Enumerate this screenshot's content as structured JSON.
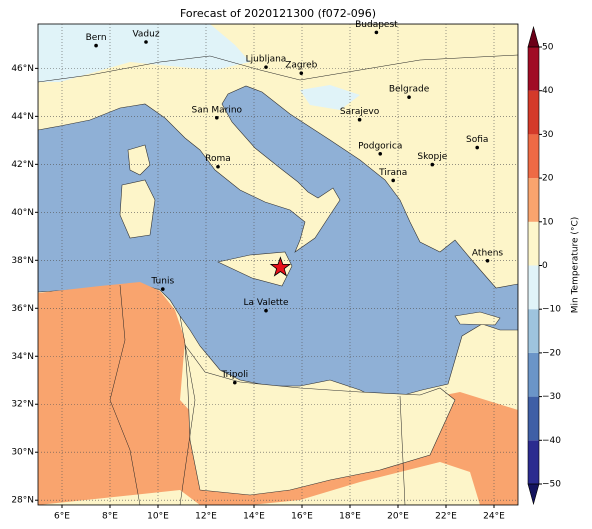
{
  "title": "Forecast of 2020121300 (f072-096)",
  "map": {
    "xlim": [
      5,
      25
    ],
    "ylim": [
      27.8,
      47.85
    ],
    "xticks": [
      {
        "value": 6,
        "label": "6°E"
      },
      {
        "value": 8,
        "label": "8°E"
      },
      {
        "value": 10,
        "label": "10°E"
      },
      {
        "value": 12,
        "label": "12°E"
      },
      {
        "value": 14,
        "label": "14°E"
      },
      {
        "value": 16,
        "label": "16°E"
      },
      {
        "value": 18,
        "label": "18°E"
      },
      {
        "value": 20,
        "label": "20°E"
      },
      {
        "value": 22,
        "label": "22°E"
      },
      {
        "value": 24,
        "label": "24°E"
      }
    ],
    "yticks": [
      {
        "value": 28,
        "label": "28°N"
      },
      {
        "value": 30,
        "label": "30°N"
      },
      {
        "value": 32,
        "label": "32°N"
      },
      {
        "value": 34,
        "label": "34°N"
      },
      {
        "value": 36,
        "label": "36°N"
      },
      {
        "value": 38,
        "label": "38°N"
      },
      {
        "value": 40,
        "label": "40°N"
      },
      {
        "value": 42,
        "label": "42°N"
      },
      {
        "value": 44,
        "label": "44°N"
      },
      {
        "value": 46,
        "label": "46°N"
      }
    ],
    "grid": true,
    "cities": [
      {
        "name": "Bern",
        "lon": 7.42,
        "lat": 46.95
      },
      {
        "name": "Vaduz",
        "lon": 9.5,
        "lat": 47.1
      },
      {
        "name": "Budapest",
        "lon": 19.1,
        "lat": 47.5
      },
      {
        "name": "Ljubljana",
        "lon": 14.5,
        "lat": 46.05
      },
      {
        "name": "Zagreb",
        "lon": 15.97,
        "lat": 45.8
      },
      {
        "name": "Belgrade",
        "lon": 20.46,
        "lat": 44.8
      },
      {
        "name": "Sarajevo",
        "lon": 18.4,
        "lat": 43.86
      },
      {
        "name": "San Marino",
        "lon": 12.45,
        "lat": 43.94
      },
      {
        "name": "Sofia",
        "lon": 23.3,
        "lat": 42.7
      },
      {
        "name": "Podgorica",
        "lon": 19.26,
        "lat": 42.44
      },
      {
        "name": "Skopje",
        "lon": 21.43,
        "lat": 41.99
      },
      {
        "name": "Roma",
        "lon": 12.5,
        "lat": 41.9
      },
      {
        "name": "Tirana",
        "lon": 19.8,
        "lat": 41.33
      },
      {
        "name": "Athens",
        "lon": 23.73,
        "lat": 37.98
      },
      {
        "name": "Tunis",
        "lon": 10.2,
        "lat": 36.8
      },
      {
        "name": "La Valette",
        "lon": 14.5,
        "lat": 35.9
      },
      {
        "name": "Tripoli",
        "lon": 13.2,
        "lat": 32.9
      }
    ],
    "star": {
      "lon": 15.1,
      "lat": 37.7,
      "color": "#e8101a"
    }
  },
  "colorbar": {
    "label": "Min Temperature (°C)",
    "lim": [
      -50,
      50
    ],
    "ticks": [
      {
        "value": -50,
        "label": "−50"
      },
      {
        "value": -40,
        "label": "−40"
      },
      {
        "value": -30,
        "label": "−30"
      },
      {
        "value": -20,
        "label": "−20"
      },
      {
        "value": -10,
        "label": "−10"
      },
      0,
      10,
      20,
      30,
      40,
      50
    ],
    "colors": [
      "#2b2b8f",
      "#3f5fa6",
      "#6b95c8",
      "#9ec4de",
      "#e0f3f8",
      "#fdf6cb",
      "#f9a46e",
      "#ee6a45",
      "#d43a2a",
      "#a00c25"
    ],
    "under": "#14145e",
    "over": "#6b0018"
  }
}
